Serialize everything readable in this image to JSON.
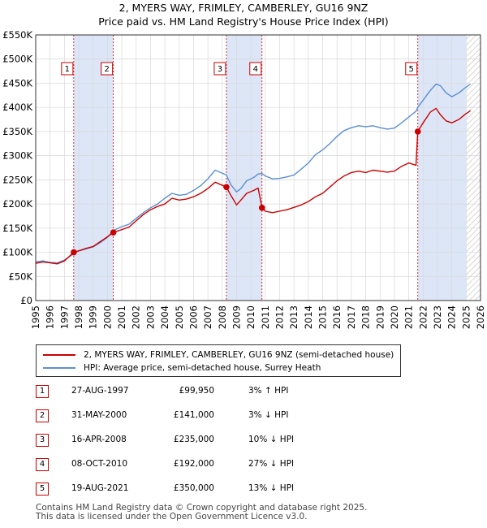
{
  "header": {
    "line1": "2, MYERS WAY, FRIMLEY, CAMBERLEY, GU16 9NZ",
    "line2": "Price paid vs. HM Land Registry's House Price Index (HPI)"
  },
  "chart_data": {
    "type": "line",
    "ylim": [
      0,
      550000
    ],
    "xlim": [
      1995,
      2026
    ],
    "y_ticks": [
      "£0",
      "£50K",
      "£100K",
      "£150K",
      "£200K",
      "£250K",
      "£300K",
      "£350K",
      "£400K",
      "£450K",
      "£500K",
      "£550K"
    ],
    "x_ticks": [
      "1995",
      "1996",
      "1997",
      "1998",
      "1999",
      "2000",
      "2001",
      "2002",
      "2003",
      "2004",
      "2005",
      "2006",
      "2007",
      "2008",
      "2009",
      "2010",
      "2011",
      "2012",
      "2013",
      "2014",
      "2015",
      "2016",
      "2017",
      "2018",
      "2019",
      "2020",
      "2021",
      "2022",
      "2023",
      "2024",
      "2025",
      "2026"
    ],
    "legend_position": "below",
    "series": [
      {
        "name": "2, MYERS WAY, FRIMLEY, CAMBERLEY, GU16 9NZ (semi-detached house)",
        "color": "#cc0000",
        "points": [
          [
            1995.0,
            77000
          ],
          [
            1995.5,
            80000
          ],
          [
            1996.0,
            78000
          ],
          [
            1996.5,
            76000
          ],
          [
            1997.0,
            82000
          ],
          [
            1997.65,
            99950
          ],
          [
            1998.0,
            103000
          ],
          [
            1998.5,
            108000
          ],
          [
            1999.0,
            112000
          ],
          [
            1999.5,
            122000
          ],
          [
            2000.0,
            132000
          ],
          [
            2000.41,
            141000
          ],
          [
            2001.0,
            147000
          ],
          [
            2001.5,
            152000
          ],
          [
            2002.0,
            165000
          ],
          [
            2002.5,
            178000
          ],
          [
            2003.0,
            188000
          ],
          [
            2003.5,
            195000
          ],
          [
            2004.0,
            200000
          ],
          [
            2004.5,
            212000
          ],
          [
            2005.0,
            208000
          ],
          [
            2005.5,
            210000
          ],
          [
            2006.0,
            215000
          ],
          [
            2006.5,
            222000
          ],
          [
            2007.0,
            232000
          ],
          [
            2007.5,
            245000
          ],
          [
            2007.9,
            240000
          ],
          [
            2008.29,
            235000
          ],
          [
            2008.6,
            218000
          ],
          [
            2009.0,
            198000
          ],
          [
            2009.3,
            208000
          ],
          [
            2009.7,
            222000
          ],
          [
            2010.2,
            228000
          ],
          [
            2010.5,
            233000
          ],
          [
            2010.77,
            192000
          ],
          [
            2011.0,
            185000
          ],
          [
            2011.5,
            182000
          ],
          [
            2012.0,
            185000
          ],
          [
            2012.5,
            188000
          ],
          [
            2013.0,
            193000
          ],
          [
            2013.5,
            198000
          ],
          [
            2014.0,
            205000
          ],
          [
            2014.5,
            215000
          ],
          [
            2015.0,
            222000
          ],
          [
            2015.5,
            235000
          ],
          [
            2016.0,
            248000
          ],
          [
            2016.5,
            258000
          ],
          [
            2017.0,
            265000
          ],
          [
            2017.5,
            268000
          ],
          [
            2018.0,
            265000
          ],
          [
            2018.5,
            270000
          ],
          [
            2019.0,
            268000
          ],
          [
            2019.5,
            266000
          ],
          [
            2020.0,
            268000
          ],
          [
            2020.5,
            278000
          ],
          [
            2021.0,
            285000
          ],
          [
            2021.5,
            280000
          ],
          [
            2021.63,
            350000
          ],
          [
            2022.0,
            368000
          ],
          [
            2022.5,
            390000
          ],
          [
            2022.9,
            398000
          ],
          [
            2023.2,
            385000
          ],
          [
            2023.6,
            372000
          ],
          [
            2024.0,
            368000
          ],
          [
            2024.5,
            375000
          ],
          [
            2024.9,
            385000
          ],
          [
            2025.3,
            393000
          ]
        ]
      },
      {
        "name": "HPI: Average price, semi-detached house, Surrey Heath",
        "color": "#5b8fd4",
        "points": [
          [
            1995.0,
            80000
          ],
          [
            1995.5,
            82000
          ],
          [
            1996.0,
            79000
          ],
          [
            1996.5,
            78000
          ],
          [
            1997.0,
            84000
          ],
          [
            1997.65,
            97000
          ],
          [
            1998.0,
            103000
          ],
          [
            1998.5,
            107000
          ],
          [
            1999.0,
            111000
          ],
          [
            1999.5,
            120000
          ],
          [
            2000.0,
            131000
          ],
          [
            2000.41,
            145000
          ],
          [
            2001.0,
            153000
          ],
          [
            2001.5,
            158000
          ],
          [
            2002.0,
            170000
          ],
          [
            2002.5,
            182000
          ],
          [
            2003.0,
            192000
          ],
          [
            2003.5,
            200000
          ],
          [
            2004.0,
            212000
          ],
          [
            2004.5,
            222000
          ],
          [
            2005.0,
            218000
          ],
          [
            2005.5,
            220000
          ],
          [
            2006.0,
            228000
          ],
          [
            2006.5,
            238000
          ],
          [
            2007.0,
            252000
          ],
          [
            2007.5,
            270000
          ],
          [
            2007.9,
            265000
          ],
          [
            2008.29,
            260000
          ],
          [
            2008.6,
            240000
          ],
          [
            2009.0,
            225000
          ],
          [
            2009.3,
            232000
          ],
          [
            2009.7,
            248000
          ],
          [
            2010.2,
            255000
          ],
          [
            2010.5,
            262000
          ],
          [
            2010.77,
            263000
          ],
          [
            2011.0,
            258000
          ],
          [
            2011.5,
            252000
          ],
          [
            2012.0,
            253000
          ],
          [
            2012.5,
            256000
          ],
          [
            2013.0,
            260000
          ],
          [
            2013.5,
            272000
          ],
          [
            2014.0,
            285000
          ],
          [
            2014.5,
            302000
          ],
          [
            2015.0,
            312000
          ],
          [
            2015.5,
            325000
          ],
          [
            2016.0,
            340000
          ],
          [
            2016.5,
            352000
          ],
          [
            2017.0,
            358000
          ],
          [
            2017.5,
            362000
          ],
          [
            2018.0,
            360000
          ],
          [
            2018.5,
            362000
          ],
          [
            2019.0,
            358000
          ],
          [
            2019.5,
            355000
          ],
          [
            2020.0,
            357000
          ],
          [
            2020.5,
            368000
          ],
          [
            2021.0,
            380000
          ],
          [
            2021.5,
            392000
          ],
          [
            2021.63,
            400000
          ],
          [
            2022.0,
            415000
          ],
          [
            2022.5,
            435000
          ],
          [
            2022.9,
            448000
          ],
          [
            2023.2,
            445000
          ],
          [
            2023.6,
            430000
          ],
          [
            2024.0,
            422000
          ],
          [
            2024.5,
            430000
          ],
          [
            2024.9,
            440000
          ],
          [
            2025.3,
            448000
          ]
        ]
      }
    ],
    "markers": [
      {
        "label": "1",
        "x": 1997.65,
        "y": 99950
      },
      {
        "label": "2",
        "x": 2000.41,
        "y": 141000
      },
      {
        "label": "3",
        "x": 2008.29,
        "y": 235000
      },
      {
        "label": "4",
        "x": 2010.77,
        "y": 192000
      },
      {
        "label": "5",
        "x": 2021.63,
        "y": 350000
      }
    ],
    "shaded_ranges": [
      [
        1997.65,
        2000.41
      ],
      [
        2008.29,
        2010.77
      ],
      [
        2021.63,
        2025.0
      ]
    ],
    "hatched_range": [
      2025.0,
      2026.0
    ]
  },
  "sales": [
    {
      "num": "1",
      "date": "27-AUG-1997",
      "price": "£99,950",
      "pct": "3% ↑ HPI"
    },
    {
      "num": "2",
      "date": "31-MAY-2000",
      "price": "£141,000",
      "pct": "3% ↓ HPI"
    },
    {
      "num": "3",
      "date": "16-APR-2008",
      "price": "£235,000",
      "pct": "10% ↓ HPI"
    },
    {
      "num": "4",
      "date": "08-OCT-2010",
      "price": "£192,000",
      "pct": "27% ↓ HPI"
    },
    {
      "num": "5",
      "date": "19-AUG-2021",
      "price": "£350,000",
      "pct": "13% ↓ HPI"
    }
  ],
  "footer": {
    "line1": "Contains HM Land Registry data © Crown copyright and database right 2025.",
    "line2": "This data is licensed under the Open Government Licence v3.0."
  },
  "colors": {
    "red": "#cc0000",
    "blue": "#5b8fd4",
    "shade": "#dde6f7",
    "grid": "#d8d8d8"
  }
}
